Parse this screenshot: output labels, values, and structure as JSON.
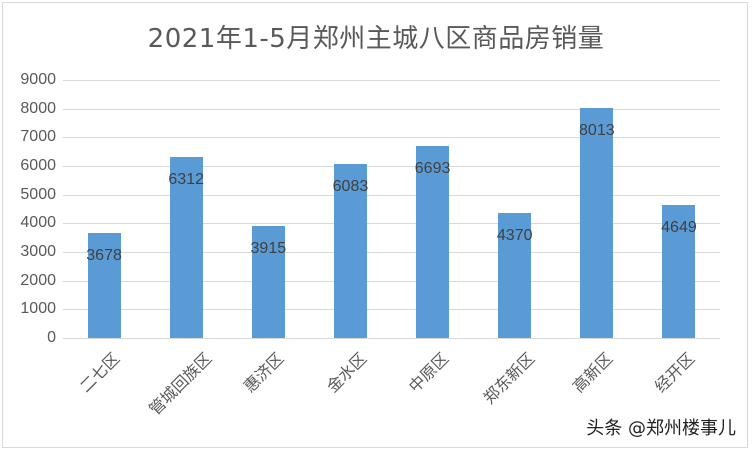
{
  "chart_data": {
    "type": "bar",
    "title": "2021年1-5月郑州主城八区商品房销量",
    "xlabel": "",
    "ylabel": "",
    "ylim": [
      0,
      9000
    ],
    "yticks": [
      0,
      1000,
      2000,
      3000,
      4000,
      5000,
      6000,
      7000,
      8000,
      9000
    ],
    "grid": true,
    "legend": "none",
    "categories": [
      "二七区",
      "管城回族区",
      "惠济区",
      "金水区",
      "中原区",
      "郑东新区",
      "高新区",
      "经开区"
    ],
    "values": [
      3678,
      6312,
      3915,
      6083,
      6693,
      4370,
      8013,
      4649
    ],
    "bar_color": "#5b9bd5",
    "data_labels": [
      "3678",
      "6312",
      "3915",
      "6083",
      "6693",
      "4370",
      "8013",
      "4649"
    ]
  },
  "watermark": "头条 @郑州楼事儿"
}
